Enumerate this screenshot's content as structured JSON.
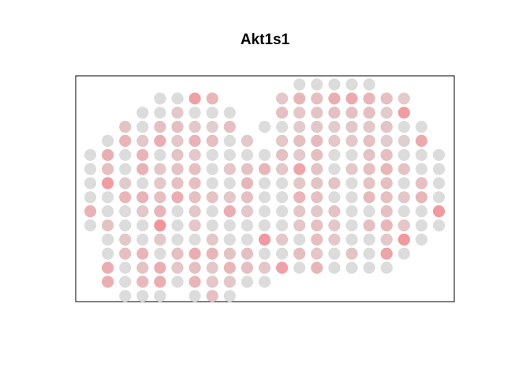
{
  "chart_data": {
    "type": "scatter",
    "title": "Akt1s1",
    "xlabel": "",
    "ylabel": "",
    "grid": false,
    "legend": "none",
    "axes_shown": false,
    "color_scale": {
      "low": "#dcdcdc",
      "high": "#f6888f"
    },
    "value_range": [
      0,
      1
    ],
    "rows": [
      {
        "y": 1,
        "points": [
          [
            12,
            0.0
          ],
          [
            13,
            0.0
          ],
          [
            14,
            0.0
          ],
          [
            15,
            0.0
          ],
          [
            16,
            0.0
          ]
        ]
      },
      {
        "y": 2,
        "points": [
          [
            4,
            0.0
          ],
          [
            5,
            0.0
          ],
          [
            6,
            0.72
          ],
          [
            7,
            0.45
          ],
          [
            11,
            0.25
          ],
          [
            12,
            0.45
          ],
          [
            13,
            0.35
          ],
          [
            14,
            0.55
          ],
          [
            15,
            0.6
          ],
          [
            16,
            0.45
          ],
          [
            17,
            0.35
          ],
          [
            18,
            0.2
          ]
        ]
      },
      {
        "y": 3,
        "points": [
          [
            3,
            0.0
          ],
          [
            4,
            0.0
          ],
          [
            5,
            0.25
          ],
          [
            6,
            0.0
          ],
          [
            7,
            0.0
          ],
          [
            8,
            0.0
          ],
          [
            11,
            0.35
          ],
          [
            12,
            0.25
          ],
          [
            13,
            0.3
          ],
          [
            14,
            0.35
          ],
          [
            15,
            0.35
          ],
          [
            16,
            0.35
          ],
          [
            17,
            0.2
          ],
          [
            18,
            0.75
          ]
        ]
      },
      {
        "y": 4,
        "points": [
          [
            2,
            0.3
          ],
          [
            3,
            0.0
          ],
          [
            4,
            0.35
          ],
          [
            5,
            0.35
          ],
          [
            6,
            0.25
          ],
          [
            7,
            0.15
          ],
          [
            8,
            0.35
          ],
          [
            10,
            0.0
          ],
          [
            11,
            0.0
          ],
          [
            12,
            0.2
          ],
          [
            13,
            0.25
          ],
          [
            14,
            0.2
          ],
          [
            15,
            0.25
          ],
          [
            16,
            0.25
          ],
          [
            17,
            0.3
          ],
          [
            18,
            0.0
          ],
          [
            19,
            0.0
          ]
        ]
      },
      {
        "y": 5,
        "points": [
          [
            1,
            0.0
          ],
          [
            2,
            0.45
          ],
          [
            3,
            0.25
          ],
          [
            4,
            0.55
          ],
          [
            5,
            0.25
          ],
          [
            6,
            0.5
          ],
          [
            7,
            0.35
          ],
          [
            8,
            0.0
          ],
          [
            9,
            0.25
          ],
          [
            11,
            0.25
          ],
          [
            12,
            0.35
          ],
          [
            13,
            0.4
          ],
          [
            14,
            0.25
          ],
          [
            15,
            0.25
          ],
          [
            16,
            0.35
          ],
          [
            17,
            0.2
          ],
          [
            18,
            0.15
          ],
          [
            19,
            0.6
          ]
        ]
      },
      {
        "y": 6,
        "points": [
          [
            0,
            0.0
          ],
          [
            1,
            0.55
          ],
          [
            2,
            0.0
          ],
          [
            3,
            0.45
          ],
          [
            4,
            0.0
          ],
          [
            5,
            0.3
          ],
          [
            6,
            0.25
          ],
          [
            7,
            0.0
          ],
          [
            8,
            0.0
          ],
          [
            9,
            0.0
          ],
          [
            10,
            0.0
          ],
          [
            11,
            0.35
          ],
          [
            12,
            0.2
          ],
          [
            13,
            0.35
          ],
          [
            14,
            0.0
          ],
          [
            15,
            0.0
          ],
          [
            16,
            0.3
          ],
          [
            17,
            0.35
          ],
          [
            18,
            0.0
          ],
          [
            19,
            0.0
          ],
          [
            20,
            0.0
          ]
        ]
      },
      {
        "y": 7,
        "points": [
          [
            0,
            0.0
          ],
          [
            1,
            0.35
          ],
          [
            2,
            0.0
          ],
          [
            3,
            0.5
          ],
          [
            4,
            0.25
          ],
          [
            5,
            0.3
          ],
          [
            6,
            0.35
          ],
          [
            7,
            0.0
          ],
          [
            8,
            0.25
          ],
          [
            9,
            0.3
          ],
          [
            10,
            0.45
          ],
          [
            11,
            0.25
          ],
          [
            12,
            0.65
          ],
          [
            13,
            0.3
          ],
          [
            14,
            0.0
          ],
          [
            15,
            0.25
          ],
          [
            16,
            0.35
          ],
          [
            17,
            0.45
          ],
          [
            18,
            0.3
          ],
          [
            19,
            0.0
          ],
          [
            20,
            0.0
          ]
        ]
      },
      {
        "y": 8,
        "points": [
          [
            0,
            0.0
          ],
          [
            1,
            0.75
          ],
          [
            2,
            0.2
          ],
          [
            3,
            0.0
          ],
          [
            4,
            0.25
          ],
          [
            5,
            0.35
          ],
          [
            6,
            0.35
          ],
          [
            7,
            0.0
          ],
          [
            8,
            0.0
          ],
          [
            9,
            0.45
          ],
          [
            10,
            0.0
          ],
          [
            11,
            0.0
          ],
          [
            12,
            0.25
          ],
          [
            13,
            0.3
          ],
          [
            14,
            0.3
          ],
          [
            15,
            0.0
          ],
          [
            16,
            0.3
          ],
          [
            17,
            0.35
          ],
          [
            18,
            0.0
          ],
          [
            19,
            0.35
          ],
          [
            20,
            0.0
          ]
        ]
      },
      {
        "y": 9,
        "points": [
          [
            0,
            0.0
          ],
          [
            1,
            0.0
          ],
          [
            2,
            0.45
          ],
          [
            3,
            0.5
          ],
          [
            4,
            0.35
          ],
          [
            5,
            0.55
          ],
          [
            6,
            0.35
          ],
          [
            7,
            0.3
          ],
          [
            8,
            0.25
          ],
          [
            9,
            0.35
          ],
          [
            10,
            0.0
          ],
          [
            11,
            0.0
          ],
          [
            12,
            0.45
          ],
          [
            13,
            0.35
          ],
          [
            14,
            0.0
          ],
          [
            15,
            0.0
          ],
          [
            16,
            0.4
          ],
          [
            17,
            0.35
          ],
          [
            18,
            0.25
          ],
          [
            19,
            0.45
          ],
          [
            20,
            0.0
          ]
        ]
      },
      {
        "y": 10,
        "points": [
          [
            0,
            0.5
          ],
          [
            1,
            0.0
          ],
          [
            2,
            0.0
          ],
          [
            3,
            0.25
          ],
          [
            4,
            0.45
          ],
          [
            5,
            0.0
          ],
          [
            6,
            0.25
          ],
          [
            7,
            0.0
          ],
          [
            8,
            0.55
          ],
          [
            9,
            0.25
          ],
          [
            10,
            0.0
          ],
          [
            11,
            0.0
          ],
          [
            12,
            0.25
          ],
          [
            13,
            0.25
          ],
          [
            14,
            0.3
          ],
          [
            15,
            0.0
          ],
          [
            16,
            0.0
          ],
          [
            17,
            0.35
          ],
          [
            18,
            0.0
          ],
          [
            19,
            0.0
          ],
          [
            20,
            0.8
          ]
        ]
      },
      {
        "y": 11,
        "points": [
          [
            0,
            0.0
          ],
          [
            1,
            0.3
          ],
          [
            2,
            0.0
          ],
          [
            3,
            0.0
          ],
          [
            4,
            0.85
          ],
          [
            5,
            0.0
          ],
          [
            6,
            0.25
          ],
          [
            7,
            0.0
          ],
          [
            8,
            0.0
          ],
          [
            9,
            0.0
          ],
          [
            10,
            0.0
          ],
          [
            11,
            0.0
          ],
          [
            12,
            0.25
          ],
          [
            13,
            0.35
          ],
          [
            14,
            0.25
          ],
          [
            15,
            0.0
          ],
          [
            16,
            0.35
          ],
          [
            17,
            0.45
          ],
          [
            18,
            0.25
          ],
          [
            19,
            0.0
          ],
          [
            20,
            0.0
          ]
        ]
      },
      {
        "y": 12,
        "points": [
          [
            1,
            0.0
          ],
          [
            2,
            0.25
          ],
          [
            3,
            0.0
          ],
          [
            4,
            0.25
          ],
          [
            5,
            0.0
          ],
          [
            6,
            0.0
          ],
          [
            7,
            0.25
          ],
          [
            8,
            0.0
          ],
          [
            9,
            0.0
          ],
          [
            10,
            0.8
          ],
          [
            11,
            0.25
          ],
          [
            12,
            0.0
          ],
          [
            13,
            0.35
          ],
          [
            14,
            0.25
          ],
          [
            15,
            0.0
          ],
          [
            16,
            0.0
          ],
          [
            17,
            0.25
          ],
          [
            18,
            0.8
          ],
          [
            19,
            0.0
          ]
        ]
      },
      {
        "y": 13,
        "points": [
          [
            1,
            0.0
          ],
          [
            2,
            0.35
          ],
          [
            3,
            0.45
          ],
          [
            4,
            0.0
          ],
          [
            5,
            0.35
          ],
          [
            6,
            0.55
          ],
          [
            7,
            0.45
          ],
          [
            8,
            0.3
          ],
          [
            9,
            0.35
          ],
          [
            10,
            0.0
          ],
          [
            11,
            0.0
          ],
          [
            12,
            0.35
          ],
          [
            13,
            0.25
          ],
          [
            14,
            0.0
          ],
          [
            15,
            0.3
          ],
          [
            16,
            0.0
          ],
          [
            17,
            0.65
          ],
          [
            18,
            0.0
          ]
        ]
      },
      {
        "y": 14,
        "points": [
          [
            1,
            0.55
          ],
          [
            2,
            0.0
          ],
          [
            3,
            0.3
          ],
          [
            4,
            0.55
          ],
          [
            5,
            0.25
          ],
          [
            6,
            0.35
          ],
          [
            7,
            0.25
          ],
          [
            8,
            0.45
          ],
          [
            9,
            0.35
          ],
          [
            10,
            0.25
          ],
          [
            11,
            0.7
          ],
          [
            12,
            0.0
          ],
          [
            13,
            0.45
          ],
          [
            14,
            0.0
          ],
          [
            15,
            0.0
          ],
          [
            16,
            0.0
          ],
          [
            17,
            0.0
          ]
        ]
      },
      {
        "y": 15,
        "points": [
          [
            1,
            0.55
          ],
          [
            2,
            0.0
          ],
          [
            3,
            0.4
          ],
          [
            4,
            0.55
          ],
          [
            5,
            0.0
          ],
          [
            6,
            0.45
          ],
          [
            7,
            0.25
          ],
          [
            8,
            0.25
          ],
          [
            9,
            0.0
          ],
          [
            10,
            0.0
          ]
        ]
      },
      {
        "y": 16,
        "points": [
          [
            2,
            0.0
          ],
          [
            3,
            0.0
          ],
          [
            4,
            0.0
          ],
          [
            6,
            0.0
          ],
          [
            7,
            0.35
          ],
          [
            8,
            0.0
          ]
        ]
      }
    ]
  }
}
